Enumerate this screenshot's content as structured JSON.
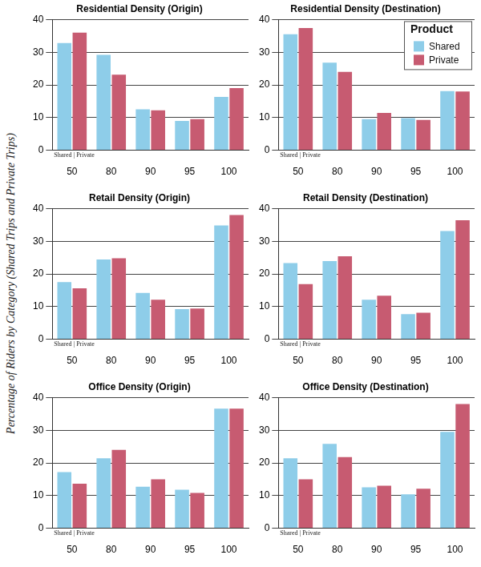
{
  "ylabel": "Percentage of Riders by Category (Shared Trips and Private Trips)",
  "chart_data": [
    {
      "type": "bar",
      "title": "Residential Density (Origin)",
      "annotation": "Shared | Private",
      "categories": [
        "50",
        "80",
        "90",
        "95",
        "100"
      ],
      "series": [
        {
          "name": "Shared",
          "color": "#8ecde9",
          "values": [
            32.8,
            29.2,
            12.5,
            9.0,
            16.3
          ]
        },
        {
          "name": "Private",
          "color": "#c75b71",
          "values": [
            36.0,
            23.1,
            12.2,
            9.5,
            19.0
          ]
        }
      ],
      "ylim": [
        0,
        40
      ],
      "yticks": [
        0,
        10,
        20,
        30,
        40
      ],
      "grid": true
    },
    {
      "type": "bar",
      "title": "Residential Density (Destination)",
      "annotation": "Shared | Private",
      "categories": [
        "50",
        "80",
        "90",
        "95",
        "100"
      ],
      "series": [
        {
          "name": "Shared",
          "color": "#8ecde9",
          "values": [
            35.5,
            26.8,
            9.5,
            9.8,
            18.1
          ]
        },
        {
          "name": "Private",
          "color": "#c75b71",
          "values": [
            37.4,
            24.0,
            11.4,
            9.3,
            18.0
          ]
        }
      ],
      "ylim": [
        0,
        40
      ],
      "yticks": [
        0,
        10,
        20,
        30,
        40
      ],
      "grid": true,
      "legend": "upper right",
      "legend_title": "Product"
    },
    {
      "type": "bar",
      "title": "Retail Density (Origin)",
      "annotation": "Shared | Private",
      "categories": [
        "50",
        "80",
        "90",
        "95",
        "100"
      ],
      "series": [
        {
          "name": "Shared",
          "color": "#8ecde9",
          "values": [
            17.5,
            24.4,
            14.2,
            9.2,
            34.8
          ]
        },
        {
          "name": "Private",
          "color": "#c75b71",
          "values": [
            15.6,
            24.8,
            12.1,
            9.4,
            38.0
          ]
        }
      ],
      "ylim": [
        0,
        40
      ],
      "yticks": [
        0,
        10,
        20,
        30,
        40
      ],
      "grid": true
    },
    {
      "type": "bar",
      "title": "Retail Density (Destination)",
      "annotation": "Shared | Private",
      "categories": [
        "50",
        "80",
        "90",
        "95",
        "100"
      ],
      "series": [
        {
          "name": "Shared",
          "color": "#8ecde9",
          "values": [
            23.3,
            23.9,
            12.1,
            7.7,
            33.1
          ]
        },
        {
          "name": "Private",
          "color": "#c75b71",
          "values": [
            16.9,
            25.4,
            13.3,
            8.1,
            36.4
          ]
        }
      ],
      "ylim": [
        0,
        40
      ],
      "yticks": [
        0,
        10,
        20,
        30,
        40
      ],
      "grid": true
    },
    {
      "type": "bar",
      "title": "Office Density (Origin)",
      "annotation": "Shared | Private",
      "categories": [
        "50",
        "80",
        "90",
        "95",
        "100"
      ],
      "series": [
        {
          "name": "Shared",
          "color": "#8ecde9",
          "values": [
            17.2,
            21.4,
            12.7,
            11.8,
            36.6
          ]
        },
        {
          "name": "Private",
          "color": "#c75b71",
          "values": [
            13.6,
            24.0,
            15.0,
            10.8,
            36.6
          ]
        }
      ],
      "ylim": [
        0,
        40
      ],
      "yticks": [
        0,
        10,
        20,
        30,
        40
      ],
      "grid": true
    },
    {
      "type": "bar",
      "title": "Office Density (Destination)",
      "annotation": "Shared | Private",
      "categories": [
        "50",
        "80",
        "90",
        "95",
        "100"
      ],
      "series": [
        {
          "name": "Shared",
          "color": "#8ecde9",
          "values": [
            21.4,
            25.8,
            12.5,
            10.4,
            29.5
          ]
        },
        {
          "name": "Private",
          "color": "#c75b71",
          "values": [
            15.0,
            21.8,
            13.0,
            12.1,
            38.0
          ]
        }
      ],
      "ylim": [
        0,
        40
      ],
      "yticks": [
        0,
        10,
        20,
        30,
        40
      ],
      "grid": true
    }
  ]
}
